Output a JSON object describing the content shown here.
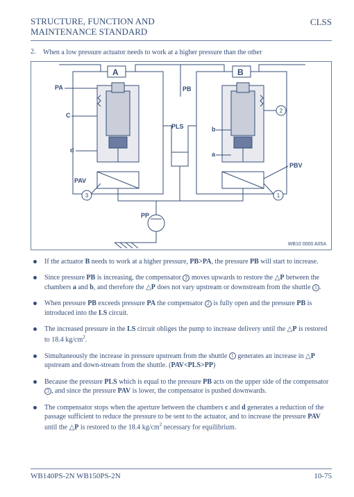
{
  "header": {
    "left_line1": "STRUCTURE, FUNCTION AND",
    "left_line2": "MAINTENANCE STANDARD",
    "right": "CLSS"
  },
  "item": {
    "num": "2.",
    "text": "When a low pressure actuator needs to work at a higher pressure than the other"
  },
  "diagram": {
    "labels": {
      "A": "A",
      "B": "B",
      "PA": "PA",
      "PB": "PB",
      "C": "C",
      "PLS": "PLS",
      "d": "d",
      "b": "b",
      "a": "a",
      "PAV": "PAV",
      "PBV": "PBV",
      "PP": "PP",
      "c1": "1",
      "c2": "2",
      "c3": "3",
      "ref": "WB10 0000 A05A"
    },
    "colors": {
      "stroke": "#344d77",
      "fill_grey": "#c9ced8",
      "fill_dark": "#6b7ca0"
    }
  },
  "bullets": [
    "If the actuator <b>B</b> needs to work at a higher pressure, <b>PB&gt;PA</b>, the pressure <b>PB</b> will start to increase.",
    "Since pressure <b>PB</b> is increasing, the compensator <span class='circ'>2</span> moves upwards to restore the <span class='tri'>△</span><b>P</b> between the chambers <b>a</b> and <b>b</b>, and therefore the <span class='tri'>△</span><b>P</b> does not vary upstream or downstream from the shuttle <span class='circ'>1</span>.",
    "When pressure <b>PB</b> exceeds pressure <b>PA</b> the compensator <span class='circ'>2</span> is fully open and the pressure <b>PB</b> is introduced into the <b>LS</b> circuit.",
    "The increased pressure in the <b>LS</b> circuit obliges the pump to increase delivery until the <span class='tri'>△</span><b>P</b> is restored to 18.4 kg/cm<span class='sup'>2</span>.",
    "Simultaneously the increase in pressure upstream from the shuttle <span class='circ'>1</span> generates an increase in <span class='tri'>△</span><b>P</b> upstream and down-stream from the shuttle. (<b>PAV&lt;PLS&gt;PP</b>)",
    "Because the pressure <b>PLS</b> which is equal to the pressure <b>PB</b> acts on the upper side of the compensator <span class='circ'>3</span>, and since the pressure <b>PAV</b> is lower, the compensator is pushed downwards.",
    "The compensator stops when the aperture between the chambers <b>c</b> and <b>d</b> generates a reduction of the passage sufficient to reduce the pressure to be sent to the actuator, and to increase the pressure <b>PAV</b> until the <span class='tri'>△</span><b>P</b> is restored to the 18.4 kg/cm<span class='sup'>2</span> necessary for equilibrium."
  ],
  "footer": {
    "left": "WB140PS-2N WB150PS-2N",
    "right": "10-75"
  }
}
